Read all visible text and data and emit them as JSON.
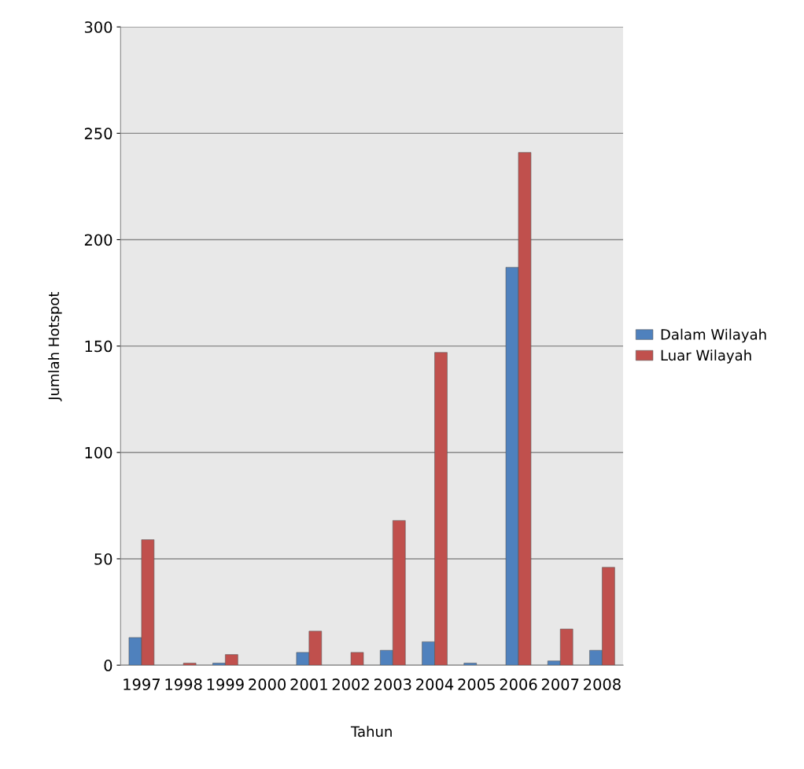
{
  "chart_data": {
    "type": "bar",
    "xlabel": "Tahun",
    "ylabel": "Jumlah Hotspot",
    "categories": [
      "1997",
      "1998",
      "1999",
      "2000",
      "2001",
      "2002",
      "2003",
      "2004",
      "2005",
      "2006",
      "2007",
      "2008"
    ],
    "series": [
      {
        "name": "Dalam Wilayah",
        "color": "#4f81bd",
        "values": [
          13,
          null,
          1,
          null,
          6,
          null,
          7,
          11,
          1,
          187,
          2,
          7
        ]
      },
      {
        "name": "Luar Wilayah",
        "color": "#c0504d",
        "values": [
          59,
          1,
          5,
          null,
          16,
          6,
          68,
          147,
          null,
          241,
          17,
          46
        ]
      }
    ],
    "ylim": [
      0,
      300
    ],
    "yticks": [
      0,
      50,
      100,
      150,
      200,
      250,
      300
    ],
    "grid": "y",
    "legend": "right"
  }
}
